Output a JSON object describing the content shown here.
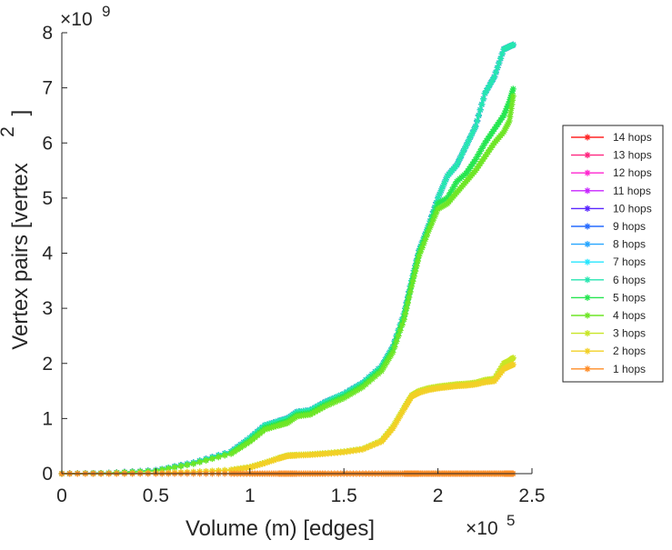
{
  "chart_data": {
    "type": "line",
    "xlabel": "Volume (m) [edges]",
    "ylabel": "Vertex pairs [vertex",
    "ylabel_superscript": "2",
    "ylabel_close": "]",
    "x_multiplier": "×10",
    "x_multiplier_exp": "5",
    "y_multiplier": "×10",
    "y_multiplier_exp": "9",
    "xlim": [
      0,
      2.5
    ],
    "ylim": [
      0,
      8
    ],
    "x_tick_values": [
      0,
      0.5,
      1,
      1.5,
      2,
      2.5
    ],
    "x_ticks": [
      "0",
      "0.5",
      "1",
      "1.5",
      "2",
      "2.5"
    ],
    "y_tick_values": [
      0,
      1,
      2,
      3,
      4,
      5,
      6,
      7,
      8
    ],
    "y_ticks": [
      "0",
      "1",
      "2",
      "3",
      "4",
      "5",
      "6",
      "7",
      "8"
    ],
    "grid": false,
    "legend_position": "right",
    "marker": "asterisk",
    "x": [
      0,
      0.25,
      0.5,
      0.7,
      0.9,
      1.0,
      1.08,
      1.15,
      1.2,
      1.25,
      1.32,
      1.4,
      1.5,
      1.6,
      1.7,
      1.76,
      1.82,
      1.86,
      1.9,
      1.95,
      2.0,
      2.05,
      2.1,
      2.15,
      2.2,
      2.25,
      2.3,
      2.35,
      2.38,
      2.4
    ],
    "series": [
      {
        "name": "14 hops",
        "color": "#ff2626",
        "values": [
          0,
          0.01,
          0.06,
          0.2,
          0.4,
          0.65,
          0.88,
          0.95,
          1.0,
          1.12,
          1.15,
          1.3,
          1.45,
          1.65,
          1.95,
          2.3,
          2.9,
          3.5,
          4.05,
          4.5,
          5.0,
          5.4,
          5.6,
          5.95,
          6.3,
          6.9,
          7.2,
          7.7,
          7.75,
          7.78
        ]
      },
      {
        "name": "13 hops",
        "color": "#ff2680",
        "values": [
          0,
          0.01,
          0.06,
          0.2,
          0.4,
          0.65,
          0.88,
          0.95,
          1.0,
          1.12,
          1.15,
          1.3,
          1.45,
          1.65,
          1.95,
          2.3,
          2.9,
          3.5,
          4.05,
          4.5,
          5.0,
          5.4,
          5.6,
          5.95,
          6.3,
          6.9,
          7.2,
          7.7,
          7.75,
          7.78
        ]
      },
      {
        "name": "12 hops",
        "color": "#ff26d0",
        "values": [
          0,
          0.01,
          0.06,
          0.2,
          0.4,
          0.65,
          0.88,
          0.95,
          1.0,
          1.12,
          1.15,
          1.3,
          1.45,
          1.65,
          1.95,
          2.3,
          2.9,
          3.5,
          4.05,
          4.5,
          5.0,
          5.4,
          5.6,
          5.95,
          6.3,
          6.9,
          7.2,
          7.7,
          7.75,
          7.78
        ]
      },
      {
        "name": "11 hops",
        "color": "#c826ff",
        "values": [
          0,
          0.01,
          0.06,
          0.2,
          0.4,
          0.65,
          0.88,
          0.95,
          1.0,
          1.12,
          1.15,
          1.3,
          1.45,
          1.65,
          1.95,
          2.3,
          2.9,
          3.5,
          4.05,
          4.5,
          5.0,
          5.4,
          5.6,
          5.95,
          6.3,
          6.9,
          7.2,
          7.7,
          7.75,
          7.78
        ]
      },
      {
        "name": "10 hops",
        "color": "#5a26ff",
        "values": [
          0,
          0.01,
          0.06,
          0.2,
          0.4,
          0.65,
          0.88,
          0.95,
          1.0,
          1.12,
          1.15,
          1.3,
          1.45,
          1.65,
          1.95,
          2.3,
          2.9,
          3.5,
          4.05,
          4.5,
          5.0,
          5.4,
          5.6,
          5.95,
          6.3,
          6.9,
          7.2,
          7.7,
          7.75,
          7.78
        ]
      },
      {
        "name": "9 hops",
        "color": "#266bff",
        "values": [
          0,
          0.01,
          0.06,
          0.2,
          0.4,
          0.65,
          0.88,
          0.95,
          1.0,
          1.12,
          1.15,
          1.3,
          1.45,
          1.65,
          1.95,
          2.3,
          2.9,
          3.5,
          4.05,
          4.5,
          5.0,
          5.4,
          5.6,
          5.95,
          6.3,
          6.9,
          7.2,
          7.7,
          7.75,
          7.78
        ]
      },
      {
        "name": "8 hops",
        "color": "#26a6ff",
        "values": [
          0,
          0.01,
          0.06,
          0.2,
          0.4,
          0.65,
          0.88,
          0.95,
          1.0,
          1.12,
          1.15,
          1.3,
          1.45,
          1.65,
          1.95,
          2.3,
          2.9,
          3.5,
          4.05,
          4.5,
          5.0,
          5.4,
          5.6,
          5.95,
          6.3,
          6.9,
          7.2,
          7.7,
          7.75,
          7.78
        ]
      },
      {
        "name": "7 hops",
        "color": "#26e6ff",
        "values": [
          0,
          0.01,
          0.06,
          0.2,
          0.4,
          0.65,
          0.88,
          0.95,
          1.0,
          1.12,
          1.15,
          1.3,
          1.45,
          1.65,
          1.95,
          2.3,
          2.9,
          3.5,
          4.05,
          4.5,
          5.0,
          5.4,
          5.6,
          5.95,
          6.3,
          6.9,
          7.2,
          7.7,
          7.75,
          7.78
        ]
      },
      {
        "name": "6 hops",
        "color": "#26e6b0",
        "values": [
          0,
          0.01,
          0.06,
          0.2,
          0.4,
          0.65,
          0.88,
          0.95,
          1.0,
          1.12,
          1.15,
          1.3,
          1.45,
          1.65,
          1.95,
          2.3,
          2.9,
          3.5,
          4.05,
          4.5,
          5.0,
          5.4,
          5.6,
          5.95,
          6.3,
          6.9,
          7.2,
          7.7,
          7.75,
          7.78
        ]
      },
      {
        "name": "5 hops",
        "color": "#26e650",
        "values": [
          0,
          0.01,
          0.05,
          0.18,
          0.37,
          0.6,
          0.83,
          0.9,
          0.95,
          1.07,
          1.1,
          1.25,
          1.4,
          1.6,
          1.9,
          2.25,
          2.85,
          3.45,
          4.0,
          4.45,
          4.9,
          5.0,
          5.3,
          5.45,
          5.7,
          6.0,
          6.25,
          6.5,
          6.75,
          6.98
        ]
      },
      {
        "name": "4 hops",
        "color": "#6fe626",
        "values": [
          0,
          0.01,
          0.05,
          0.18,
          0.36,
          0.58,
          0.8,
          0.87,
          0.92,
          1.04,
          1.07,
          1.22,
          1.37,
          1.57,
          1.86,
          2.2,
          2.8,
          3.4,
          3.95,
          4.4,
          4.8,
          4.9,
          5.1,
          5.3,
          5.5,
          5.75,
          6.0,
          6.2,
          6.4,
          6.85
        ]
      },
      {
        "name": "3 hops",
        "color": "#c8e626",
        "values": [
          0,
          0.0,
          0.01,
          0.03,
          0.07,
          0.12,
          0.2,
          0.28,
          0.33,
          0.34,
          0.35,
          0.37,
          0.4,
          0.45,
          0.6,
          0.85,
          1.2,
          1.42,
          1.5,
          1.55,
          1.58,
          1.6,
          1.62,
          1.63,
          1.65,
          1.7,
          1.72,
          2.0,
          2.05,
          2.1
        ]
      },
      {
        "name": "2 hops",
        "color": "#f2d026",
        "values": [
          0,
          0.0,
          0.01,
          0.03,
          0.06,
          0.11,
          0.19,
          0.27,
          0.32,
          0.33,
          0.34,
          0.36,
          0.39,
          0.44,
          0.58,
          0.82,
          1.17,
          1.4,
          1.47,
          1.52,
          1.55,
          1.57,
          1.59,
          1.6,
          1.62,
          1.66,
          1.68,
          1.9,
          1.95,
          1.98
        ]
      },
      {
        "name": "1 hops",
        "color": "#ff8c26",
        "values": [
          0,
          0,
          0,
          0,
          0,
          0,
          0,
          0,
          0,
          0,
          0,
          0,
          0,
          0,
          0,
          0,
          0,
          0,
          0,
          0,
          0,
          0,
          0,
          0,
          0,
          0,
          0,
          0,
          0,
          0
        ]
      }
    ]
  }
}
